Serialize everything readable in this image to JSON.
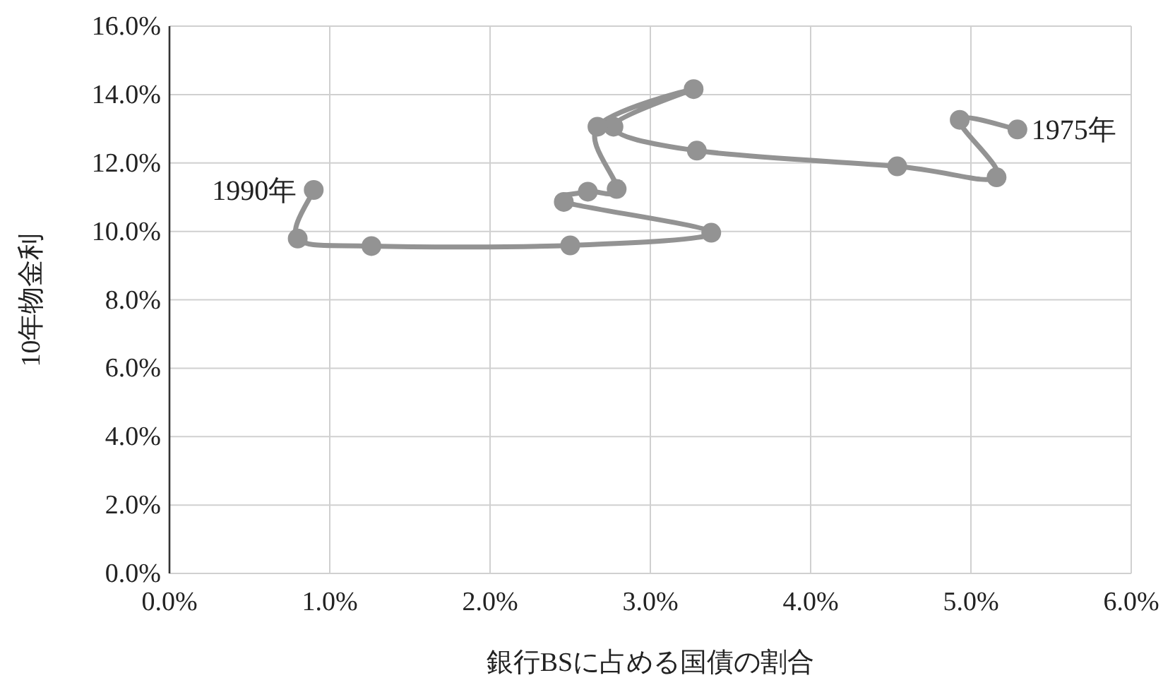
{
  "chart_data": {
    "type": "line",
    "xlabel": "銀行BSに占める国債の割合",
    "ylabel": "10年物金利",
    "xlim": [
      0,
      6
    ],
    "ylim": [
      0,
      16
    ],
    "xticks": [
      {
        "value": 0,
        "label": "0.0%"
      },
      {
        "value": 1,
        "label": "1.0%"
      },
      {
        "value": 2,
        "label": "2.0%"
      },
      {
        "value": 3,
        "label": "3.0%"
      },
      {
        "value": 4,
        "label": "4.0%"
      },
      {
        "value": 5,
        "label": "5.0%"
      },
      {
        "value": 6,
        "label": "6.0%"
      }
    ],
    "yticks": [
      {
        "value": 0,
        "label": "0.0%"
      },
      {
        "value": 2,
        "label": "2.0%"
      },
      {
        "value": 4,
        "label": "4.0%"
      },
      {
        "value": 6,
        "label": "6.0%"
      },
      {
        "value": 8,
        "label": "8.0%"
      },
      {
        "value": 10,
        "label": "10.0%"
      },
      {
        "value": 12,
        "label": "12.0%"
      },
      {
        "value": 14,
        "label": "14.0%"
      },
      {
        "value": 16,
        "label": "16.0%"
      }
    ],
    "grid": true,
    "marker": "circle",
    "line_style": "solid",
    "series": [
      {
        "color": "#939393",
        "x": [
          5.29,
          4.93,
          5.16,
          4.54,
          3.29,
          2.77,
          3.27,
          2.67,
          2.79,
          2.61,
          2.46,
          3.38,
          2.5,
          1.26,
          0.8,
          0.9
        ],
        "values": [
          12.98,
          13.26,
          11.58,
          11.9,
          12.36,
          13.06,
          14.16,
          13.06,
          11.24,
          11.16,
          10.86,
          9.96,
          9.59,
          9.57,
          9.79,
          11.21
        ]
      }
    ],
    "annotations": [
      {
        "text": "1975年",
        "x": 5.29,
        "y": 12.98
      },
      {
        "text": "1990年",
        "x": 0.9,
        "y": 11.21
      }
    ]
  }
}
